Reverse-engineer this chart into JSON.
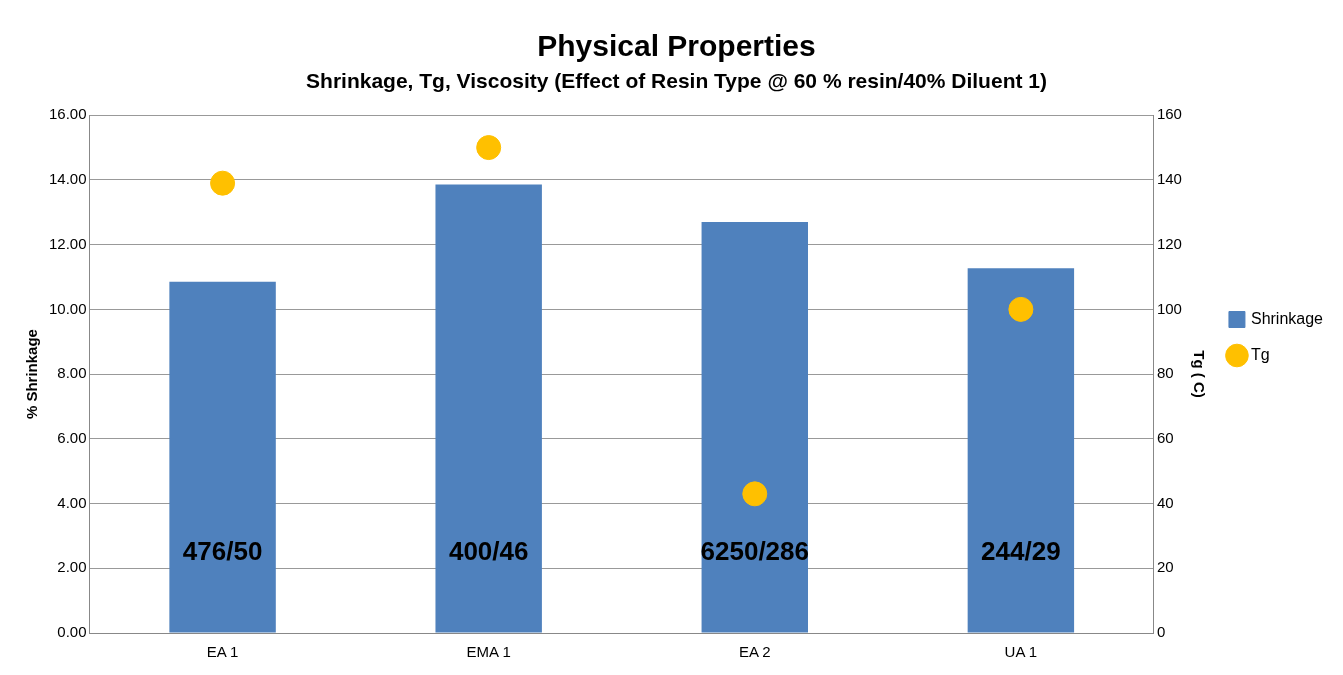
{
  "chart_data": {
    "type": "bar",
    "title": "Physical Properties",
    "subtitle": "Shrinkage, Tg, Viscosity (Effect of Resin Type @ 60 % resin/40% Diluent 1)",
    "ylabel": "% Shrinkage",
    "y2label": "Tg ( C)",
    "categories": [
      "EA 1",
      "EMA 1",
      "EA 2",
      "UA 1"
    ],
    "series": [
      {
        "name": "Shrinkage",
        "color": "#4f81bd",
        "values": [
          10.85,
          13.86,
          12.7,
          11.27
        ]
      },
      {
        "name": "Tg",
        "type": "scatter",
        "axis": "y2",
        "color": "#ffc000",
        "values": [
          139,
          150,
          43,
          100
        ]
      }
    ],
    "ylim": [
      0,
      16
    ],
    "yticks": [
      {
        "value": 0,
        "label": "0.00"
      },
      {
        "value": 2,
        "label": "2.00"
      },
      {
        "value": 4,
        "label": "4.00"
      },
      {
        "value": 6,
        "label": "6.00"
      },
      {
        "value": 8,
        "label": "8.00"
      },
      {
        "value": 10,
        "label": "10.00"
      },
      {
        "value": 12,
        "label": "12.00"
      },
      {
        "value": 14,
        "label": "14.00"
      },
      {
        "value": 16,
        "label": "16.00"
      }
    ],
    "y2lim": [
      0,
      160
    ],
    "y2ticks": [
      0,
      20,
      40,
      60,
      80,
      100,
      120,
      140,
      160
    ],
    "annotations": [
      "476/50",
      "400/46",
      "6250/286",
      "244/29"
    ],
    "grid": "y",
    "legend": "right",
    "marker": "circle"
  }
}
